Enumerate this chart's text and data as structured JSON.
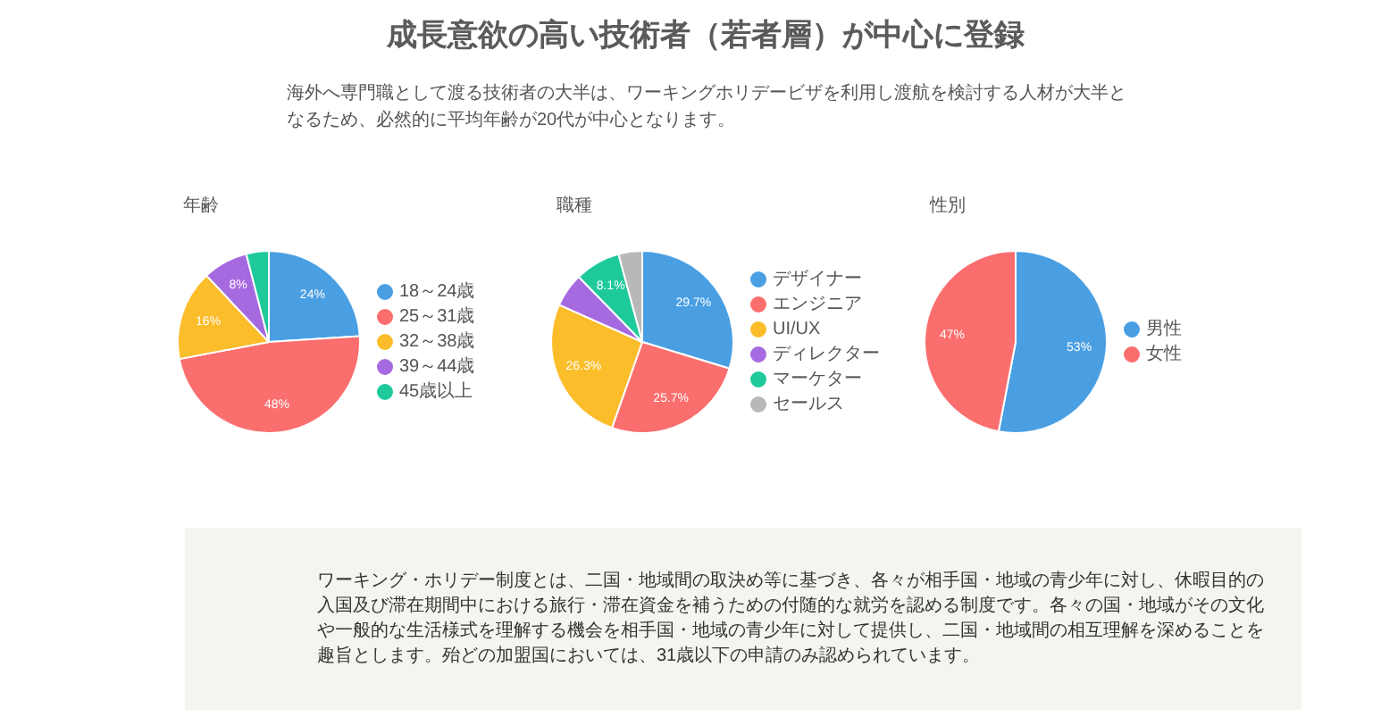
{
  "chart_data": [
    {
      "type": "other",
      "title": "成長意欲の高い技術者（若者層）が中心に登録",
      "subtitle": "海外へ専門職として渡る技術者の大半は、ワーキングホリデービザを利用し渡航を検討する人材が大半となるため、必然的に平均年齢が20代が中心となります。"
    },
    {
      "type": "pie",
      "title": "年齢",
      "categories": [
        "18～24歳",
        "25～31歳",
        "32～38歳",
        "39～44歳",
        "45歳以上"
      ],
      "values": [
        24,
        48,
        16,
        8,
        4
      ],
      "colors": [
        "#4a9fe3",
        "#fb6e6e",
        "#fbbd2a",
        "#a66ae0",
        "#1ec99a"
      ],
      "value_labels": [
        "24%",
        "48%",
        "16%",
        "8%",
        null
      ],
      "legend": "right"
    },
    {
      "type": "pie",
      "title": "職種",
      "categories": [
        "デザイナー",
        "エンジニア",
        "UI/UX",
        "ディレクター",
        "マーケター",
        "セールス"
      ],
      "values": [
        29.7,
        25.7,
        26.3,
        6.0,
        8.1,
        4.2
      ],
      "colors": [
        "#4a9fe3",
        "#fb6e6e",
        "#fbbd2a",
        "#a66ae0",
        "#1ec99a",
        "#b8b8b8"
      ],
      "value_labels": [
        "29.7%",
        "25.7%",
        "26.3%",
        null,
        "8.1%",
        null
      ],
      "legend": "right"
    },
    {
      "type": "pie",
      "title": "性別",
      "categories": [
        "男性",
        "女性"
      ],
      "values": [
        53,
        47
      ],
      "colors": [
        "#4a9fe3",
        "#fb6e6e"
      ],
      "value_labels": [
        "53%",
        "47%"
      ],
      "legend": "right"
    },
    {
      "type": "other",
      "annotations": [
        "ワーキング・ホリデー制度とは、二国・地域間の取決め等に基づき、各々が相手国・地域の青少年に対し、休暇目的の入国及び滞在期間中における旅行・滞在資金を補うための付随的な就労を認める制度です。各々の国・地域がその文化や一般的な生活様式を理解する機会を相手国・地域の青少年に対して提供し、二国・地域間の相互理解を深めることを趣旨とします。殆どの加盟国においては、31歳以下の申請のみ認められています。"
      ]
    }
  ]
}
